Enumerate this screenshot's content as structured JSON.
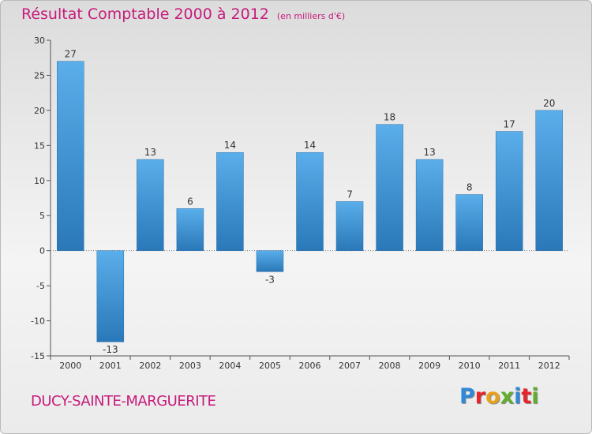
{
  "header": {
    "title": "Résultat Comptable 2000 à 2012",
    "subtitle": "(en milliers d'€)"
  },
  "footer": {
    "commune": "DUCY-SAINTE-MARGUERITE",
    "logo_text": "Proxiti",
    "logo_colors": [
      "#2e8ad8",
      "#e8232a",
      "#e8a21a",
      "#5fae2e",
      "#2e8ad8",
      "#e8232a",
      "#5fae2e"
    ]
  },
  "colors": {
    "bar_light": "#5aaeea",
    "bar_dark": "#2a78b8",
    "axis": "#555555",
    "grid": "#777777"
  },
  "chart_data": {
    "type": "bar",
    "title": "Résultat Comptable 2000 à 2012",
    "xlabel": "",
    "ylabel": "",
    "ylim": [
      -15,
      30
    ],
    "yticks": [
      -15,
      -10,
      -5,
      0,
      5,
      10,
      15,
      20,
      25,
      30
    ],
    "categories": [
      "2000",
      "2001",
      "2002",
      "2003",
      "2004",
      "2005",
      "2006",
      "2007",
      "2008",
      "2009",
      "2010",
      "2011",
      "2012"
    ],
    "values": [
      27,
      -13,
      13,
      6,
      14,
      -3,
      14,
      7,
      18,
      13,
      8,
      17,
      20
    ],
    "grid": false,
    "legend": "none"
  }
}
